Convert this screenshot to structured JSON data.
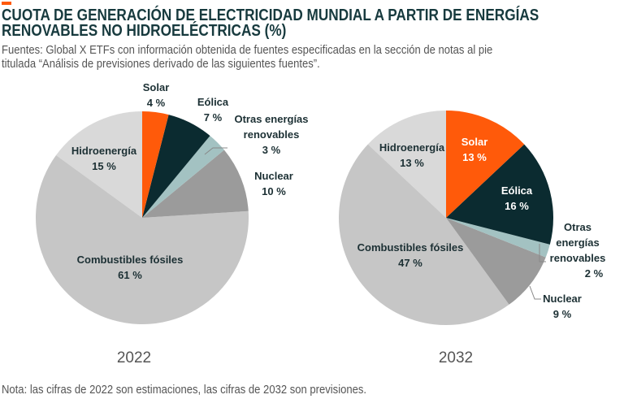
{
  "title": "CUOTA DE GENERACIÓN DE ELECTRICIDAD MUNDIAL A PARTIR DE ENERGÍAS",
  "title2": "RENOVABLES NO HIDROELÉCTRICAS (%)",
  "source1": "Fuentes: Global X ETFs con información obtenida de fuentes especificadas en la sección de notas al pie",
  "source2": "titulada “Análisis de previsiones derivado de las siguientes fuentes”.",
  "note": "Nota: las cifras de 2022 son estimaciones, las cifras de 2032 son previsiones.",
  "chart_data": [
    {
      "type": "pie",
      "title": "2022",
      "unit": "%",
      "labels": [
        "Solar",
        "Eólica",
        "Otras energías renovables",
        "Nuclear",
        "Combustibles fósiles",
        "Hidroenergía"
      ],
      "values": [
        4,
        7,
        3,
        10,
        61,
        15
      ],
      "colors": [
        "#ff5a0a",
        "#0b2b30",
        "#a3c2c2",
        "#9b9b9b",
        "#c6c6c6",
        "#d9d9d9"
      ]
    },
    {
      "type": "pie",
      "title": "2032",
      "unit": "%",
      "labels": [
        "Solar",
        "Eólica",
        "Otras energías renovables",
        "Nuclear",
        "Combustibles fósiles",
        "Hidroenergía"
      ],
      "values": [
        13,
        16,
        2,
        9,
        47,
        13
      ],
      "colors": [
        "#ff5a0a",
        "#0b2b30",
        "#a3c2c2",
        "#9b9b9b",
        "#c6c6c6",
        "#d9d9d9"
      ]
    }
  ],
  "labels2022": {
    "solar": "Solar",
    "solar_v": "4 %",
    "eolica": "Eólica",
    "eolica_v": "7 %",
    "otras1": "Otras energías",
    "otras2": "renovables",
    "otras_v": "3 %",
    "nuclear": "Nuclear",
    "nuclear_v": "10 %",
    "fosiles": "Combustibles fósiles",
    "fosiles_v": "61 %",
    "hidro": "Hidroenergía",
    "hidro_v": "15 %"
  },
  "labels2032": {
    "solar": "Solar",
    "solar_v": "13 %",
    "eolica": "Eólica",
    "eolica_v": "16 %",
    "otras1": "Otras",
    "otras2": "energías",
    "otras3": "renovables",
    "otras_v": "2 %",
    "nuclear": "Nuclear",
    "nuclear_v": "9 %",
    "fosiles": "Combustibles fósiles",
    "fosiles_v": "47 %",
    "hidro": "Hidroenergía",
    "hidro_v": "13 %"
  }
}
